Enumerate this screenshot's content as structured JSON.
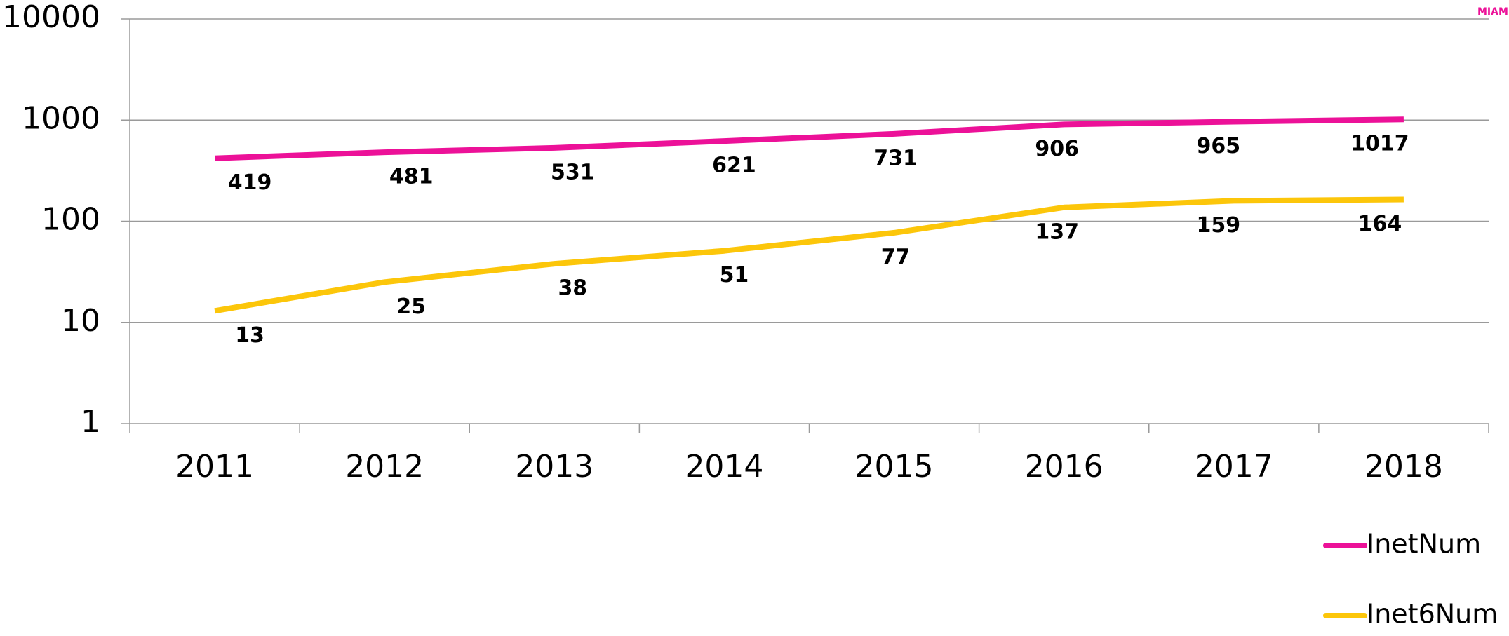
{
  "chart_data": {
    "type": "line",
    "watermark": "MIAMI",
    "categories": [
      "2011",
      "2012",
      "2013",
      "2014",
      "2015",
      "2016",
      "2017",
      "2018"
    ],
    "series": [
      {
        "name": "InetNum",
        "color": "#ec1198",
        "values": [
          419,
          481,
          531,
          621,
          731,
          906,
          965,
          1017
        ]
      },
      {
        "name": "Inet6Num",
        "color": "#fcc60a",
        "values": [
          13,
          25,
          38,
          51,
          77,
          137,
          159,
          164
        ]
      }
    ],
    "ylim": [
      1,
      10000
    ],
    "yticks": [
      1,
      10,
      100,
      1000,
      10000
    ],
    "log_scale": true,
    "grid": true,
    "legend": "bottom-right"
  }
}
